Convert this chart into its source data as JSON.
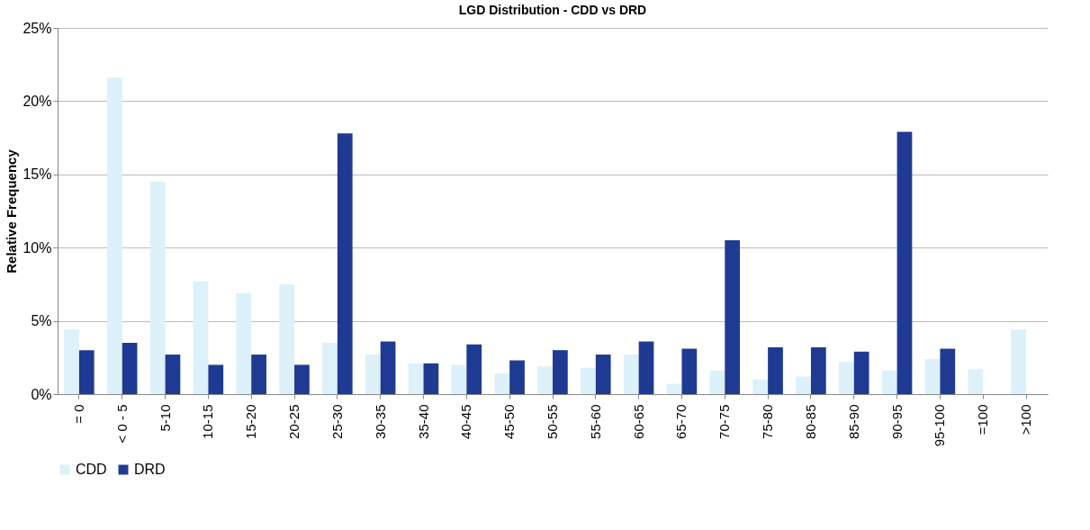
{
  "chart_data": {
    "type": "bar",
    "title": "LGD Distribution - CDD vs DRD",
    "ylabel": "Relative Frequency",
    "categories": [
      "= 0",
      "< 0 - 5",
      "5-10",
      "10-15",
      "15-20",
      "20-25",
      "25-30",
      "30-35",
      "35-40",
      "40-45",
      "45-50",
      "50-55",
      "55-60",
      "60-65",
      "65-70",
      "70-75",
      "75-80",
      "80-85",
      "85-90",
      "90-95",
      "95-100",
      "=100",
      ">100"
    ],
    "series": [
      {
        "name": "CDD",
        "color": "#dcf1f9",
        "values": [
          4.4,
          21.6,
          14.5,
          7.7,
          6.9,
          7.5,
          3.5,
          2.7,
          2.1,
          2.0,
          1.4,
          1.9,
          1.8,
          2.7,
          0.7,
          1.6,
          1.0,
          1.2,
          2.2,
          1.6,
          2.4,
          1.7,
          4.4
        ]
      },
      {
        "name": "DRD",
        "color": "#1f3a93",
        "values": [
          3.0,
          3.5,
          2.7,
          2.0,
          2.7,
          2.0,
          17.8,
          3.6,
          2.1,
          3.4,
          2.3,
          3.0,
          2.7,
          3.6,
          3.1,
          10.5,
          3.2,
          3.2,
          2.9,
          17.9,
          3.1,
          null,
          null
        ]
      }
    ],
    "ylim": [
      0,
      25
    ],
    "yticks": [
      {
        "value": 0,
        "label": "0%"
      },
      {
        "value": 5,
        "label": "5%"
      },
      {
        "value": 10,
        "label": "10%"
      },
      {
        "value": 15,
        "label": "15%"
      },
      {
        "value": 20,
        "label": "20%"
      },
      {
        "value": 25,
        "label": "25%"
      }
    ],
    "grid": "y",
    "legend": "bottom"
  }
}
